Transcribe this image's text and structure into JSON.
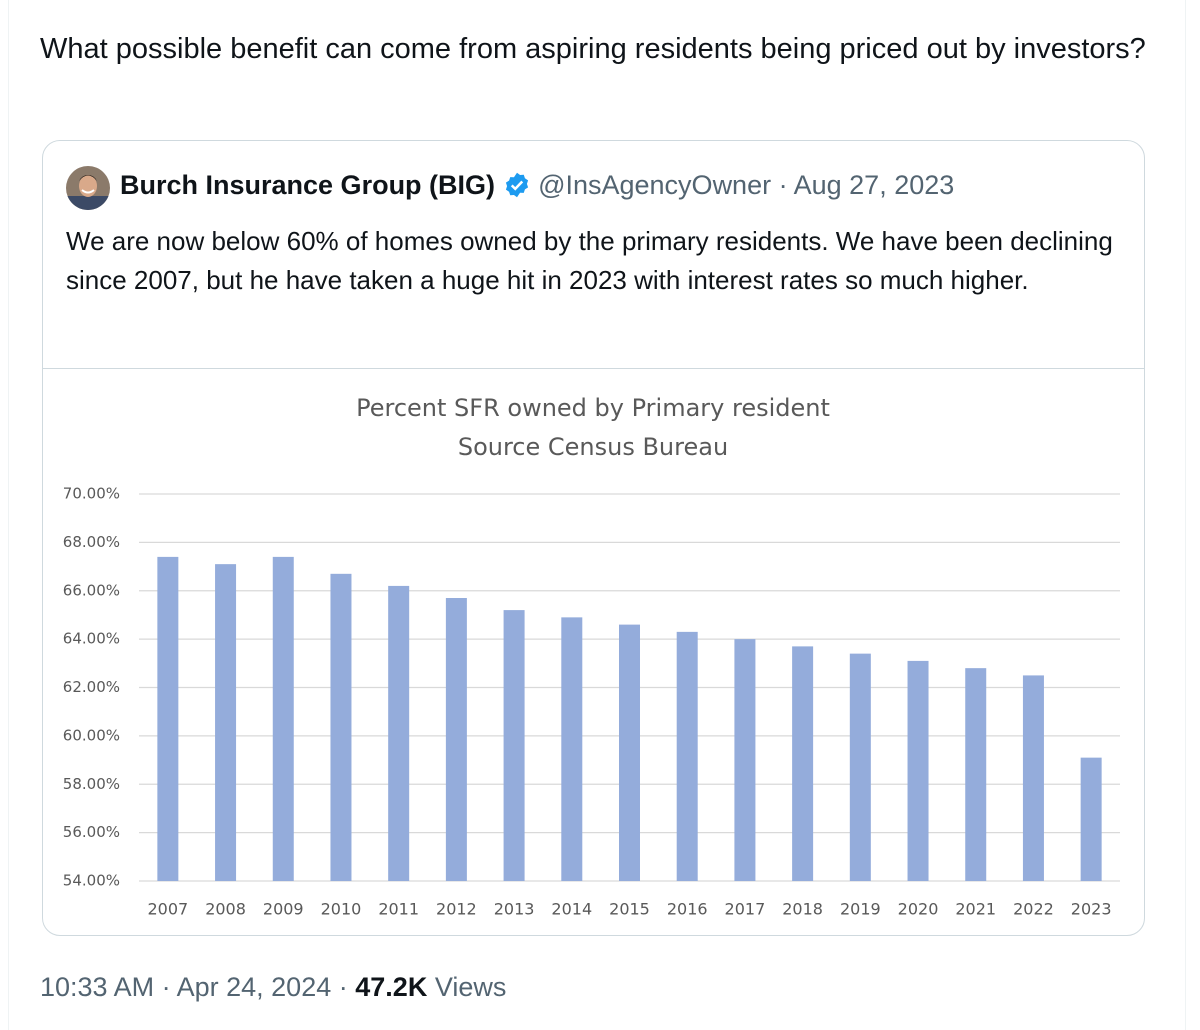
{
  "tweet": {
    "text": "What possible benefit can come from aspiring residents being priced out by investors?"
  },
  "quoted_tweet": {
    "author_name": "Burch Insurance Group (BIG)",
    "handle": "@InsAgencyOwner",
    "separator": "·",
    "date": "Aug 27, 2023",
    "text": "We are now below 60% of homes owned by the primary residents. We have been declining since 2007, but he have taken a huge hit in 2023 with interest rates so much higher."
  },
  "chart_data": {
    "type": "bar",
    "title": "Percent SFR owned by Primary resident",
    "subtitle": "Source Census Bureau",
    "categories": [
      "2007",
      "2008",
      "2009",
      "2010",
      "2011",
      "2012",
      "2013",
      "2014",
      "2015",
      "2016",
      "2017",
      "2018",
      "2019",
      "2020",
      "2021",
      "2022",
      "2023"
    ],
    "values": [
      67.4,
      67.1,
      67.4,
      66.7,
      66.2,
      65.7,
      65.2,
      64.9,
      64.6,
      64.3,
      64.0,
      63.7,
      63.4,
      63.1,
      62.8,
      62.5,
      59.1
    ],
    "color": "#94acdb",
    "ylim": [
      54,
      70
    ],
    "yticks": [
      {
        "value": 54,
        "label": "54.00%"
      },
      {
        "value": 56,
        "label": "56.00%"
      },
      {
        "value": 58,
        "label": "58.00%"
      },
      {
        "value": 60,
        "label": "60.00%"
      },
      {
        "value": 62,
        "label": "62.00%"
      },
      {
        "value": 64,
        "label": "64.00%"
      },
      {
        "value": 66,
        "label": "66.00%"
      },
      {
        "value": 68,
        "label": "68.00%"
      },
      {
        "value": 70,
        "label": "70.00%"
      }
    ],
    "grid": true
  },
  "footer": {
    "time": "10:33 AM",
    "separator": "·",
    "date": "Apr 24, 2024",
    "views_count": "47.2K",
    "views_label": "Views"
  }
}
